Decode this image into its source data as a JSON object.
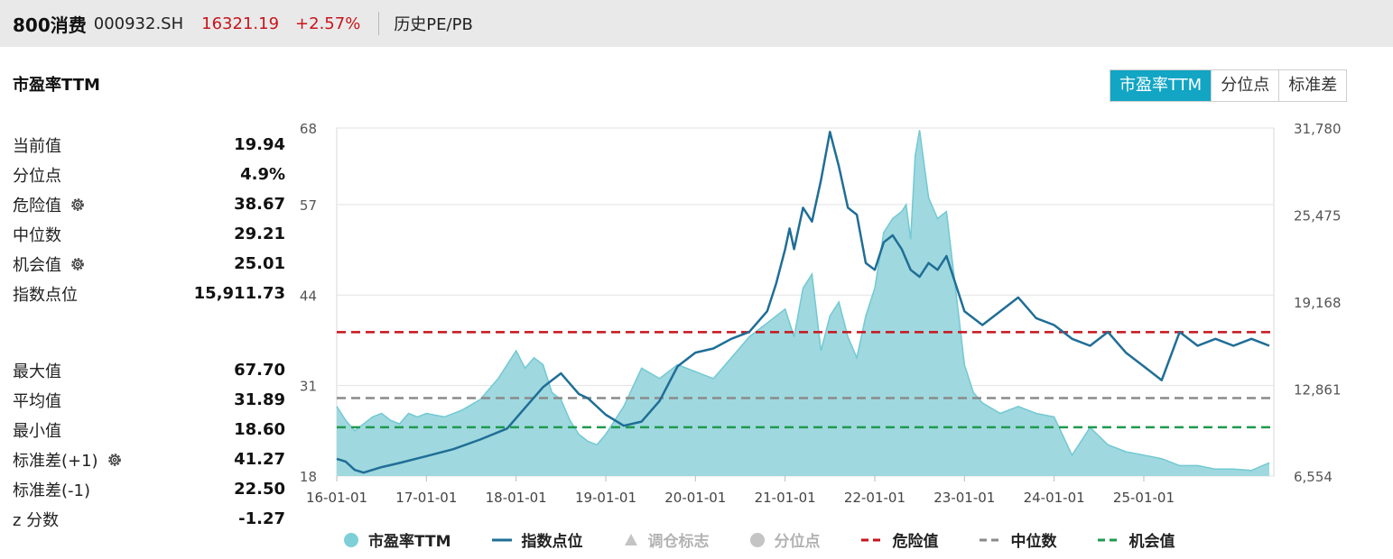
{
  "header": {
    "name": "800消费",
    "code": "000932.SH",
    "price": "16321.19",
    "change": "+2.57%",
    "link": "历史PE/PB"
  },
  "section_title": "市盈率TTM",
  "tabs": [
    {
      "label": "市盈率TTM",
      "active": true
    },
    {
      "label": "分位点",
      "active": false
    },
    {
      "label": "标准差",
      "active": false
    }
  ],
  "stats_top": [
    {
      "label": "当前值",
      "value": "19.94",
      "gear": false
    },
    {
      "label": "分位点",
      "value": "4.9%",
      "gear": false
    },
    {
      "label": "危险值",
      "value": "38.67",
      "gear": true
    },
    {
      "label": "中位数",
      "value": "29.21",
      "gear": false
    },
    {
      "label": "机会值",
      "value": "25.01",
      "gear": true
    },
    {
      "label": "指数点位",
      "value": "15,911.73",
      "gear": false
    }
  ],
  "stats_bottom": [
    {
      "label": "最大值",
      "value": "67.70",
      "gear": false
    },
    {
      "label": "平均值",
      "value": "31.89",
      "gear": false
    },
    {
      "label": "最小值",
      "value": "18.60",
      "gear": false
    },
    {
      "label": "标准差(+1)",
      "value": "41.27",
      "gear": true
    },
    {
      "label": "标准差(-1)",
      "value": "22.50",
      "gear": false
    },
    {
      "label": "z 分数",
      "value": "-1.27",
      "gear": false
    }
  ],
  "colors": {
    "area": "#9fd8df",
    "area_line": "#72c9d3",
    "index_line": "#1f6e96",
    "danger": "#c8141b",
    "median": "#8a8a8a",
    "opportunity": "#1f9a4e",
    "accent": "#12a5c4"
  },
  "chart_data": {
    "type": "area+line",
    "x_tick_labels": [
      "16-01-01",
      "17-01-01",
      "18-01-01",
      "19-01-01",
      "20-01-01",
      "21-01-01",
      "22-01-01",
      "23-01-01",
      "24-01-01",
      "25-01-01"
    ],
    "left_axis": {
      "ticks": [
        18,
        31,
        44,
        57,
        68
      ],
      "range": [
        18,
        68
      ]
    },
    "right_axis": {
      "ticks": [
        "6,554",
        "12,861",
        "19,168",
        "25,475",
        "31,780"
      ],
      "range": [
        6554,
        31780
      ]
    },
    "reference_lines": [
      {
        "name": "危险值",
        "value": 38.67,
        "color": "#c8141b"
      },
      {
        "name": "中位数",
        "value": 29.21,
        "color": "#8a8a8a"
      },
      {
        "name": "机会值",
        "value": 25.01,
        "color": "#1f9a4e"
      }
    ],
    "series": [
      {
        "name": "市盈率TTM",
        "axis": "left",
        "type": "area",
        "x": [
          0,
          0.1,
          0.2,
          0.3,
          0.4,
          0.5,
          0.6,
          0.7,
          0.8,
          0.9,
          1.0,
          1.2,
          1.4,
          1.6,
          1.8,
          2.0,
          2.1,
          2.2,
          2.3,
          2.4,
          2.5,
          2.6,
          2.7,
          2.8,
          2.9,
          3.0,
          3.2,
          3.4,
          3.6,
          3.8,
          4.0,
          4.2,
          4.4,
          4.6,
          4.8,
          5.0,
          5.1,
          5.2,
          5.3,
          5.4,
          5.5,
          5.6,
          5.7,
          5.8,
          5.9,
          6.0,
          6.1,
          6.2,
          6.3,
          6.35,
          6.4,
          6.45,
          6.5,
          6.6,
          6.7,
          6.8,
          6.9,
          7.0,
          7.1,
          7.2,
          7.4,
          7.6,
          7.8,
          8.0,
          8.2,
          8.4,
          8.6,
          8.8,
          9.0,
          9.2,
          9.4,
          9.6,
          9.8,
          10.0,
          10.2,
          10.4
        ],
        "values": [
          28,
          26,
          24.5,
          25.5,
          26.5,
          27,
          26,
          25.5,
          27,
          26.5,
          27,
          26.5,
          27.5,
          29,
          32,
          36,
          33.5,
          35,
          34,
          30,
          29,
          26,
          24,
          23,
          22.5,
          24,
          28,
          33.5,
          32,
          34,
          33,
          32,
          35,
          38,
          40,
          42,
          38,
          45,
          47,
          36,
          41,
          43,
          38,
          35,
          41,
          45,
          53,
          55,
          56,
          57,
          52,
          64,
          67.7,
          58,
          55,
          56,
          45,
          34,
          30,
          28.5,
          27,
          28,
          27,
          26.5,
          21,
          25,
          22.5,
          21.5,
          21,
          20.5,
          19.5,
          19.5,
          19,
          19,
          18.8,
          19.9
        ]
      },
      {
        "name": "指数点位",
        "axis": "right",
        "type": "line",
        "x": [
          0,
          0.1,
          0.2,
          0.3,
          0.5,
          0.7,
          1.0,
          1.3,
          1.6,
          1.9,
          2.1,
          2.3,
          2.5,
          2.7,
          2.8,
          3.0,
          3.2,
          3.4,
          3.6,
          3.8,
          4.0,
          4.2,
          4.4,
          4.6,
          4.8,
          4.9,
          5.0,
          5.05,
          5.1,
          5.2,
          5.3,
          5.4,
          5.5,
          5.6,
          5.7,
          5.8,
          5.9,
          6.0,
          6.1,
          6.2,
          6.3,
          6.4,
          6.5,
          6.6,
          6.7,
          6.8,
          6.9,
          7.0,
          7.2,
          7.4,
          7.6,
          7.8,
          8.0,
          8.2,
          8.4,
          8.6,
          8.8,
          9.0,
          9.2,
          9.4,
          9.6,
          9.8,
          10.0,
          10.2,
          10.4
        ],
        "values": [
          7800,
          7600,
          7000,
          6800,
          7200,
          7500,
          8000,
          8500,
          9200,
          10000,
          11500,
          13000,
          14000,
          12500,
          12200,
          11000,
          10200,
          10500,
          12000,
          14500,
          15500,
          15800,
          16500,
          17000,
          18500,
          20500,
          23000,
          24500,
          23000,
          26000,
          25000,
          28000,
          31500,
          29000,
          26000,
          25500,
          22000,
          21500,
          23500,
          24000,
          23000,
          21500,
          21000,
          22000,
          21500,
          22500,
          20500,
          18500,
          17500,
          18500,
          19500,
          18000,
          17500,
          16500,
          16000,
          17000,
          15500,
          14500,
          13500,
          17000,
          16000,
          16500,
          16000,
          16500,
          16000
        ]
      }
    ]
  }
}
